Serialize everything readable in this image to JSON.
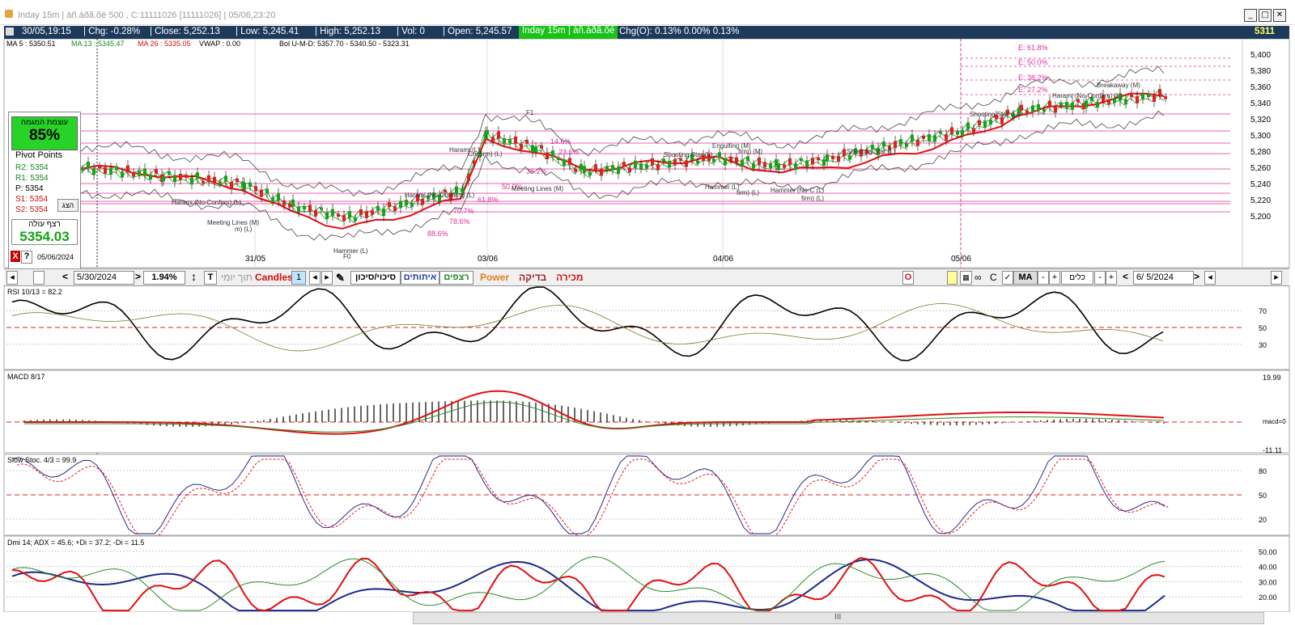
{
  "titlebar": {
    "title": "Inday 15m | àñ.àðã.õé 500 , C:11111026 [11111026] | 05/06,23:20"
  },
  "infobar": {
    "datetime": "30/05,19:15",
    "chg": "| Chg: -0.28%",
    "close": "| Close: 5,252.13",
    "low": "| Low: 5,245.41",
    "high": "| High: 5,252.13",
    "vol": "| Vol: 0",
    "open": "| Open: 5,245.57",
    "tag": "Inday 15m | àñ.àðã.õé",
    "chgo": "Chg(O): 0.13% 0.00% 0.13%",
    "price": "5311"
  },
  "indicators": {
    "ma5": "MA 5 : 5350.51",
    "ma13": "MA 13 : 5345.47",
    "ma26": "MA 26 : 5335.05",
    "vwap": "VWAP : 0.00",
    "bol": "Bol U-M-D: 5357.70 - 5340.50 - 5323.31"
  },
  "pivot_box": {
    "strength_label": "עוצמת המגמה",
    "strength_value": "85%",
    "title": "Pivot Points",
    "r2": "R2: 5354",
    "r1": "R1: 5354",
    "p": "P: 5354",
    "s1": "S1: 5354",
    "s2": "S2: 5354",
    "button": "הצג",
    "uptrend_label": "רצף עולה",
    "uptrend_value": "5354.03",
    "date": "05/06/2024",
    "close_icon": "X",
    "help_icon": "?"
  },
  "price_axis": [
    "5,400",
    "5,380",
    "5,360",
    "5,340",
    "5,320",
    "5,300",
    "5,280",
    "5,260",
    "5,240",
    "5,220",
    "5,200"
  ],
  "date_axis": [
    "31/05",
    "03/06",
    "04/06",
    "05/06"
  ],
  "fib_labels": [
    "E: 61.8%",
    "E: 50.0%",
    "E: 38.2%",
    "E: 27.2%"
  ],
  "pattern_labels": [
    {
      "t": "Harami (No-Confirm) (L)"
    },
    {
      "t": "Meeting Lines (M)"
    },
    {
      "t": "m) (L)"
    },
    {
      "t": "Hammer (L)"
    },
    {
      "t": "Harami (No-Confirm) (L)"
    },
    {
      "t": "Harami (L)"
    },
    {
      "t": "Confirm) (L)"
    },
    {
      "t": "Meeting Lines (M)"
    },
    {
      "t": "Shooting Star (L)"
    },
    {
      "t": "Engulfing (M)"
    },
    {
      "t": "firm) (M)"
    },
    {
      "t": "Hammer (L)"
    },
    {
      "t": "firm) (L)"
    },
    {
      "t": "Hammer (No-C (L)"
    },
    {
      "t": "firm) (L)"
    },
    {
      "t": "Shooting Star (L)"
    },
    {
      "t": "Shooting Star (L)"
    },
    {
      "t": "Harami (No-Confirm) (L)"
    },
    {
      "t": "Breakaway (M)"
    },
    {
      "t": "F1"
    },
    {
      "t": "F0"
    }
  ],
  "retrace_labels": [
    "14.6%",
    "23.6%",
    "38.2%",
    "50.0%",
    "61.8%",
    "70.7%",
    "78.6%",
    "88.6%"
  ],
  "toolbar": {
    "date": "5/30/2024",
    "pct": "1.94%",
    "t_label": "T",
    "daily": "תוך יומי",
    "candles": "Candles",
    "candles_num": "1",
    "risk": "סיכוי/סיכון",
    "signals": "איתותים",
    "sequences": "רצפים",
    "power": "Power",
    "check": "בדיקה",
    "sale": "מכירה",
    "o_label": "O",
    "c_label": "C",
    "ma_label": "MA",
    "tools": "כלים",
    "date2": "6/  5/2024"
  },
  "rsi": {
    "title": "RSI 10/13 = 82.2",
    "levels": [
      "70",
      "50",
      "30"
    ]
  },
  "macd": {
    "title": "MACD 8/17",
    "top": "19.99",
    "mid": "macd=0",
    "bot": "-11.11"
  },
  "stoch": {
    "title": "Slow Stoc. 4/3 = 99.9",
    "levels": [
      "80",
      "50",
      "20"
    ]
  },
  "dmi": {
    "title": "Dmi 14; ADX = 45.6; +Di = 37.2; -Di = 11.5",
    "levels": [
      "50.00",
      "40.00",
      "30.00",
      "20.00"
    ]
  },
  "scrollbar": {
    "grip": "III"
  },
  "colors": {
    "bull": "#17a317",
    "bear": "#e02020",
    "ma_red": "#e01010",
    "navy": "#1e3a5a",
    "fib": "#e0309a"
  }
}
